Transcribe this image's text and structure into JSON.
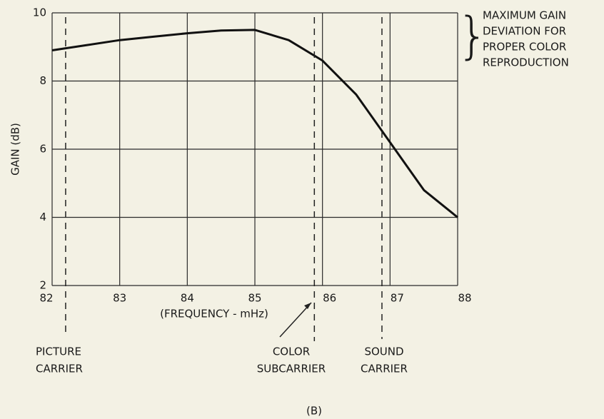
{
  "chart_data": {
    "type": "line",
    "caption": "(B)",
    "x_label": "(FREQUENCY - mHz)",
    "y_label": "GAIN (dB)",
    "note": [
      "MAXIMUM GAIN",
      "DEVIATION FOR",
      "PROPER COLOR",
      "REPRODUCTION"
    ],
    "x": [
      82,
      82.5,
      83,
      83.5,
      84,
      84.5,
      85,
      85.5,
      86,
      86.5,
      87,
      87.5,
      88
    ],
    "series": [
      {
        "color": "#111111",
        "values": [
          8.9,
          9.05,
          9.2,
          9.3,
          9.4,
          9.48,
          9.5,
          9.2,
          8.6,
          7.6,
          6.2,
          4.8,
          4.0
        ]
      }
    ],
    "markers": [
      {
        "x": 82.2,
        "label": [
          "PICTURE",
          "CARRIER"
        ]
      },
      {
        "x": 85.88,
        "label": [
          "COLOR",
          "SUBCARRIER"
        ]
      },
      {
        "x": 86.88,
        "label": [
          "SOUND",
          "CARRIER"
        ]
      }
    ],
    "xlim": [
      82,
      88
    ],
    "xticks": [
      82,
      83,
      84,
      85,
      86,
      87,
      88
    ],
    "ylim": [
      2,
      10
    ],
    "yticks": [
      2,
      4,
      6,
      8,
      10
    ],
    "grid": true
  }
}
